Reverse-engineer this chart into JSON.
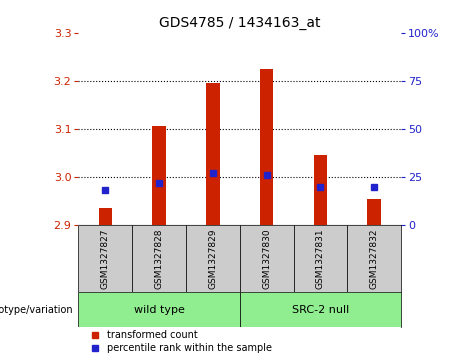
{
  "title": "GDS4785 / 1434163_at",
  "samples": [
    "GSM1327827",
    "GSM1327828",
    "GSM1327829",
    "GSM1327830",
    "GSM1327831",
    "GSM1327832"
  ],
  "transformed_counts": [
    2.935,
    3.105,
    3.195,
    3.225,
    3.045,
    2.955
  ],
  "percentile_ranks": [
    18,
    22,
    27,
    26,
    20,
    20
  ],
  "ylim_left": [
    2.9,
    3.3
  ],
  "ylim_right": [
    0,
    100
  ],
  "yticks_left": [
    2.9,
    3.0,
    3.1,
    3.2,
    3.3
  ],
  "yticks_right": [
    0,
    25,
    50,
    75,
    100
  ],
  "bar_color": "#cc2200",
  "dot_color": "#2222cc",
  "bar_bottom": 2.9,
  "bar_width": 0.25,
  "groups": [
    {
      "label": "wild type",
      "start": 0,
      "end": 2,
      "color": "#90ee90"
    },
    {
      "label": "SRC-2 null",
      "start": 3,
      "end": 5,
      "color": "#90ee90"
    }
  ],
  "group_label_prefix": "genotype/variation",
  "legend_items": [
    {
      "color": "#cc2200",
      "label": "transformed count"
    },
    {
      "color": "#2222cc",
      "label": "percentile rank within the sample"
    }
  ],
  "plot_bg": "#ffffff",
  "left_tick_color": "#cc2200",
  "right_tick_color": "#2222cc",
  "gridline_ticks": [
    3.0,
    3.1,
    3.2
  ],
  "sample_box_color": "#cccccc",
  "title_fontsize": 10,
  "tick_fontsize": 8,
  "label_fontsize": 7,
  "sample_fontsize": 6.5
}
